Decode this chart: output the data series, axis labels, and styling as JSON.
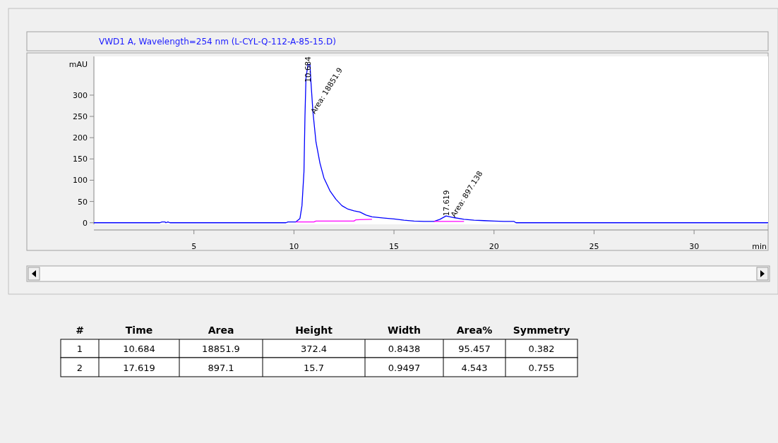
{
  "chart_data": [
    {
      "type": "line",
      "title": "VWD1 A, Wavelength=254 nm (L-CYL-Q-112-A-85-15.D)",
      "ylabel": "mAU",
      "xlabel": "min",
      "xlim": [
        0,
        33.7
      ],
      "ylim": [
        -17,
        391
      ],
      "xticks": [
        5,
        10,
        15,
        20,
        25,
        30
      ],
      "yticks": [
        0,
        50,
        100,
        150,
        200,
        250,
        300
      ],
      "grid": false,
      "annotations": [
        {
          "text": "10.684",
          "x": 10.684,
          "y": 330
        },
        {
          "text": "Area: 18851.9",
          "x": 10.9,
          "y": 255
        },
        {
          "text": "17.619",
          "x": 17.619,
          "y": 15.7
        },
        {
          "text": "Area: 897.138",
          "x": 17.9,
          "y": 12
        }
      ],
      "series": [
        {
          "color": "#0000ff",
          "x": [
            0,
            3.3,
            3.4,
            3.55,
            3.6,
            3.7,
            3.8,
            9.6,
            9.7,
            10.1,
            10.3,
            10.4,
            10.5,
            10.55,
            10.6,
            10.7,
            10.8,
            10.85,
            10.95,
            11.1,
            11.3,
            11.5,
            11.8,
            12.1,
            12.4,
            12.7,
            13.0,
            13.3,
            13.6,
            13.9,
            14.5,
            15,
            15.5,
            16,
            16.5,
            17.0,
            17.3,
            17.6,
            18,
            18.5,
            19,
            19.5,
            20,
            20.5,
            21,
            21.1,
            33.7
          ],
          "values": [
            0,
            0,
            2,
            2,
            0,
            2,
            0,
            0,
            2,
            2,
            10,
            40,
            120,
            250,
            340,
            372,
            372,
            330,
            260,
            190,
            140,
            105,
            75,
            55,
            40,
            32,
            28,
            25,
            18,
            14,
            11,
            9,
            6,
            4,
            3,
            3,
            8,
            16,
            12,
            8,
            6,
            5,
            4,
            3,
            3,
            0,
            0
          ]
        },
        {
          "color": "#ff00ff",
          "x": [
            10.1,
            11.0,
            11.1,
            13.0,
            13.1,
            13.9
          ],
          "values": [
            2,
            2,
            4,
            4,
            7,
            8
          ]
        },
        {
          "color": "#ff00ff",
          "x": [
            17.0,
            18.5
          ],
          "values": [
            3,
            3
          ]
        }
      ]
    },
    {
      "type": "other",
      "annotations": [
        "#",
        "Time",
        "Area",
        "Height",
        "Width",
        "Area%",
        "Symmetry",
        "1",
        "10.684",
        "18851.9",
        "372.4",
        "0.8438",
        "95.457",
        "0.382",
        "2",
        "17.619",
        "897.1",
        "15.7",
        "0.9497",
        "4.543",
        "0.755"
      ]
    }
  ]
}
